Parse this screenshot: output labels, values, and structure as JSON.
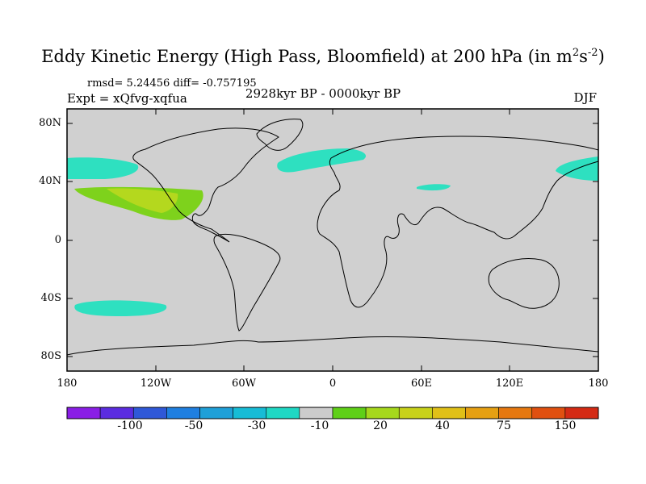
{
  "title": {
    "main": "Eddy Kinetic Energy (High Pass, Bloomfield) at 200 hPa (in m",
    "sup1": "2",
    "mid": "s",
    "sup2": "-2",
    "close": ")"
  },
  "stats": "rmsd= 5.24456 diff= -0.757195",
  "expt": "Expt = xQfvg-xqfua",
  "period": "2928kyr BP - 0000kyr BP",
  "season": "DJF",
  "axes": {
    "lat_labels": [
      "80N",
      "40N",
      "0",
      "40S",
      "80S"
    ],
    "lon_labels": [
      "180",
      "120W",
      "60W",
      "0",
      "60E",
      "120E",
      "180"
    ]
  },
  "colorbar": {
    "colors": [
      "#8a1ee6",
      "#5b2ce0",
      "#2f58d8",
      "#1f7fe0",
      "#1fa0d8",
      "#17bcd6",
      "#1fd8c4",
      "#cccccc",
      "#5fd018",
      "#a6d81c",
      "#c8d21a",
      "#e0c018",
      "#e6a012",
      "#e67810",
      "#e05010",
      "#d42a14"
    ],
    "labels": [
      "-100",
      "-50",
      "-30",
      "-10",
      "20",
      "40",
      "75",
      "150"
    ]
  },
  "legend_colors": {
    "cyan": "#2ee0c0",
    "green": "#7ed21c",
    "yellowgreen": "#b4d81e",
    "land_bg": "#d0d0d0"
  }
}
